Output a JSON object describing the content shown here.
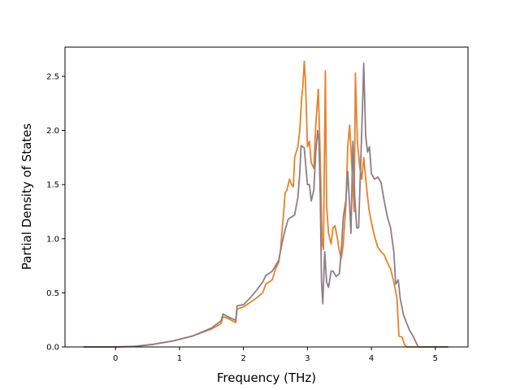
{
  "chart_data": {
    "type": "line",
    "title": "",
    "xlabel": "Frequency (THz)",
    "ylabel": "Partial Density of States",
    "xlim": [
      -0.79,
      5.51
    ],
    "ylim": [
      0.0,
      2.77
    ],
    "xticks": [
      0,
      1,
      2,
      3,
      4,
      5
    ],
    "xtick_labels": [
      "0",
      "1",
      "2",
      "3",
      "4",
      "5"
    ],
    "yticks": [
      0.0,
      0.5,
      1.0,
      1.5,
      2.0,
      2.5
    ],
    "ytick_labels": [
      "0.0",
      "0.5",
      "1.0",
      "1.5",
      "2.0",
      "2.5"
    ],
    "grid": false,
    "legend": "none",
    "series": [
      {
        "color": "#e8812a",
        "points": [
          [
            -0.5,
            0.0
          ],
          [
            0.0,
            0.0
          ],
          [
            0.3,
            0.005
          ],
          [
            0.6,
            0.025
          ],
          [
            0.9,
            0.055
          ],
          [
            1.2,
            0.1
          ],
          [
            1.5,
            0.165
          ],
          [
            1.65,
            0.215
          ],
          [
            1.68,
            0.28
          ],
          [
            1.75,
            0.265
          ],
          [
            1.88,
            0.225
          ],
          [
            1.9,
            0.35
          ],
          [
            2.0,
            0.37
          ],
          [
            2.1,
            0.41
          ],
          [
            2.2,
            0.45
          ],
          [
            2.3,
            0.5
          ],
          [
            2.35,
            0.58
          ],
          [
            2.45,
            0.62
          ],
          [
            2.5,
            0.72
          ],
          [
            2.55,
            0.78
          ],
          [
            2.58,
            0.9
          ],
          [
            2.6,
            1.05
          ],
          [
            2.63,
            1.25
          ],
          [
            2.65,
            1.42
          ],
          [
            2.68,
            1.45
          ],
          [
            2.72,
            1.55
          ],
          [
            2.75,
            1.5
          ],
          [
            2.78,
            1.48
          ],
          [
            2.8,
            1.75
          ],
          [
            2.85,
            1.85
          ],
          [
            2.88,
            2.0
          ],
          [
            2.91,
            2.3
          ],
          [
            2.93,
            2.42
          ],
          [
            2.95,
            2.64
          ],
          [
            2.97,
            2.45
          ],
          [
            3.0,
            1.85
          ],
          [
            3.03,
            1.9
          ],
          [
            3.06,
            1.7
          ],
          [
            3.1,
            1.65
          ],
          [
            3.13,
            2.05
          ],
          [
            3.17,
            2.38
          ],
          [
            3.2,
            1.75
          ],
          [
            3.23,
            0.95
          ],
          [
            3.25,
            0.9
          ],
          [
            3.28,
            2.55
          ],
          [
            3.3,
            1.3
          ],
          [
            3.33,
            1.05
          ],
          [
            3.37,
            0.95
          ],
          [
            3.4,
            1.1
          ],
          [
            3.43,
            1.12
          ],
          [
            3.47,
            1.0
          ],
          [
            3.5,
            0.88
          ],
          [
            3.53,
            0.82
          ],
          [
            3.56,
            0.95
          ],
          [
            3.6,
            1.3
          ],
          [
            3.63,
            1.85
          ],
          [
            3.66,
            2.05
          ],
          [
            3.7,
            1.6
          ],
          [
            3.73,
            1.25
          ],
          [
            3.75,
            2.53
          ],
          [
            3.78,
            1.9
          ],
          [
            3.82,
            1.65
          ],
          [
            3.85,
            1.55
          ],
          [
            3.88,
            1.75
          ],
          [
            3.92,
            1.5
          ],
          [
            3.96,
            1.28
          ],
          [
            4.0,
            1.15
          ],
          [
            4.05,
            1.02
          ],
          [
            4.1,
            0.92
          ],
          [
            4.15,
            0.88
          ],
          [
            4.2,
            0.85
          ],
          [
            4.25,
            0.78
          ],
          [
            4.3,
            0.72
          ],
          [
            4.35,
            0.6
          ],
          [
            4.4,
            0.45
          ],
          [
            4.43,
            0.1
          ],
          [
            4.48,
            0.09
          ],
          [
            4.52,
            0.02
          ],
          [
            4.55,
            0.0
          ],
          [
            5.2,
            0.0
          ]
        ]
      },
      {
        "color": "#8e7d86",
        "points": [
          [
            -0.5,
            0.0
          ],
          [
            0.0,
            0.0
          ],
          [
            0.3,
            0.005
          ],
          [
            0.6,
            0.025
          ],
          [
            0.9,
            0.055
          ],
          [
            1.2,
            0.1
          ],
          [
            1.5,
            0.175
          ],
          [
            1.65,
            0.24
          ],
          [
            1.68,
            0.305
          ],
          [
            1.75,
            0.28
          ],
          [
            1.88,
            0.245
          ],
          [
            1.9,
            0.38
          ],
          [
            2.0,
            0.39
          ],
          [
            2.1,
            0.45
          ],
          [
            2.2,
            0.52
          ],
          [
            2.3,
            0.6
          ],
          [
            2.35,
            0.66
          ],
          [
            2.4,
            0.68
          ],
          [
            2.45,
            0.7
          ],
          [
            2.5,
            0.75
          ],
          [
            2.55,
            0.8
          ],
          [
            2.6,
            0.95
          ],
          [
            2.65,
            1.08
          ],
          [
            2.7,
            1.18
          ],
          [
            2.75,
            1.2
          ],
          [
            2.8,
            1.22
          ],
          [
            2.85,
            1.38
          ],
          [
            2.88,
            1.6
          ],
          [
            2.9,
            1.86
          ],
          [
            2.95,
            1.84
          ],
          [
            3.0,
            1.5
          ],
          [
            3.03,
            1.5
          ],
          [
            3.06,
            1.35
          ],
          [
            3.1,
            1.45
          ],
          [
            3.13,
            1.8
          ],
          [
            3.16,
            2.0
          ],
          [
            3.18,
            1.9
          ],
          [
            3.2,
            1.4
          ],
          [
            3.22,
            0.6
          ],
          [
            3.24,
            0.4
          ],
          [
            3.27,
            0.88
          ],
          [
            3.3,
            0.6
          ],
          [
            3.33,
            0.55
          ],
          [
            3.37,
            0.7
          ],
          [
            3.4,
            0.7
          ],
          [
            3.45,
            0.65
          ],
          [
            3.5,
            0.68
          ],
          [
            3.53,
            0.9
          ],
          [
            3.56,
            1.2
          ],
          [
            3.6,
            1.35
          ],
          [
            3.63,
            1.62
          ],
          [
            3.66,
            1.3
          ],
          [
            3.68,
            1.05
          ],
          [
            3.71,
            1.9
          ],
          [
            3.74,
            1.38
          ],
          [
            3.77,
            1.1
          ],
          [
            3.8,
            1.1
          ],
          [
            3.83,
            1.65
          ],
          [
            3.86,
            2.2
          ],
          [
            3.88,
            2.62
          ],
          [
            3.91,
            1.95
          ],
          [
            3.94,
            1.8
          ],
          [
            3.97,
            1.85
          ],
          [
            4.0,
            1.6
          ],
          [
            4.05,
            1.55
          ],
          [
            4.1,
            1.57
          ],
          [
            4.15,
            1.52
          ],
          [
            4.2,
            1.35
          ],
          [
            4.25,
            1.2
          ],
          [
            4.3,
            1.1
          ],
          [
            4.35,
            0.88
          ],
          [
            4.38,
            0.58
          ],
          [
            4.42,
            0.62
          ],
          [
            4.45,
            0.45
          ],
          [
            4.5,
            0.3
          ],
          [
            4.55,
            0.22
          ],
          [
            4.6,
            0.15
          ],
          [
            4.65,
            0.1
          ],
          [
            4.7,
            0.04
          ],
          [
            4.73,
            0.0
          ],
          [
            5.2,
            0.0
          ]
        ]
      }
    ]
  }
}
